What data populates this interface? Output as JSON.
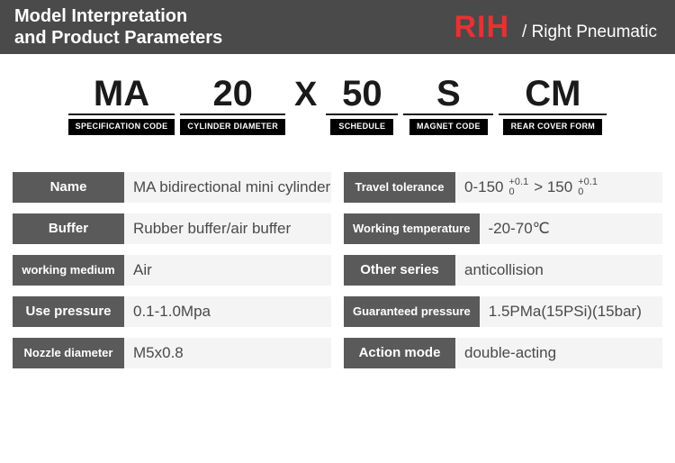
{
  "header": {
    "title_line1": "Model Interpretation",
    "title_line2": "and Product Parameters",
    "brand": "RIH",
    "brand_sub": "/ Right Pneumatic"
  },
  "codes": [
    {
      "value": "MA",
      "label": "SPECIFICATION CODE"
    },
    {
      "value": "20",
      "label": "CYLINDER DIAMETER"
    },
    {
      "sep": "X"
    },
    {
      "value": "50",
      "label": "SCHEDULE"
    },
    {
      "value": "S",
      "label": "MAGNET CODE"
    },
    {
      "value": "CM",
      "label": "REAR COVER FORM"
    }
  ],
  "params_left": [
    {
      "label": "Name",
      "value": "MA bidirectional mini cylinder",
      "cls": ""
    },
    {
      "label": "Buffer",
      "value": "Rubber buffer/air buffer",
      "cls": ""
    },
    {
      "label": "working medium",
      "value": "Air",
      "cls": "sm"
    },
    {
      "label": "Use pressure",
      "value": "0.1-1.0Mpa",
      "cls": ""
    },
    {
      "label": "Nozzle diameter",
      "value": "M5x0.8",
      "cls": "sm"
    }
  ],
  "params_right": [
    {
      "label": "Travel tolerance",
      "value_html": true,
      "cls": "sm"
    },
    {
      "label": "Working temperature",
      "value": "-20-70℃",
      "cls": "sm"
    },
    {
      "label": "Other series",
      "value": "anticollision",
      "cls": ""
    },
    {
      "label": "Guaranteed pressure",
      "value": "1.5PMa(15PSi)(15bar)",
      "cls": "sm"
    },
    {
      "label": "Action mode",
      "value": "double-acting",
      "cls": ""
    }
  ],
  "tolerance": {
    "range1": "0-150",
    "top1": "+0.1",
    "bot1": "0",
    "gt": "> 150",
    "top2": "+0.1",
    "bot2": "0"
  },
  "colors": {
    "header_bg": "#4a4a4a",
    "brand": "#e63232",
    "label_bg": "#5a5a5a",
    "value_bg": "#f4f4f4",
    "text_dark": "#1a1a1a"
  }
}
